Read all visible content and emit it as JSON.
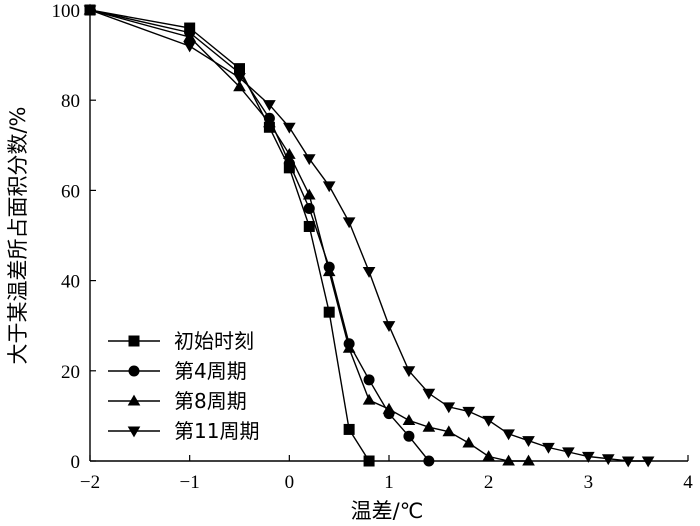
{
  "chart_data": {
    "type": "line",
    "xlabel": "温差/℃",
    "ylabel": "大于某温差所占面积分数/%",
    "xlim": [
      -2,
      4
    ],
    "ylim": [
      0,
      100
    ],
    "xticks": [
      -2,
      -1,
      0,
      1,
      2,
      3,
      4
    ],
    "xtick_labels": [
      "−2",
      "−1",
      "0",
      "1",
      "2",
      "3",
      "4"
    ],
    "yticks": [
      0,
      20,
      40,
      60,
      80,
      100
    ],
    "ytick_labels": [
      "0",
      "20",
      "40",
      "60",
      "80",
      "100"
    ],
    "grid": false,
    "legend_position": "lower-left",
    "series": [
      {
        "name": "初始时刻",
        "marker": "square",
        "x": [
          -2,
          -1,
          -0.5,
          -0.2,
          0,
          0.2,
          0.4,
          0.6,
          0.8
        ],
        "y": [
          100,
          96,
          87,
          74,
          65,
          52,
          33,
          7,
          0
        ]
      },
      {
        "name": "第4周期",
        "marker": "circle",
        "x": [
          -2,
          -1,
          -0.5,
          -0.2,
          0,
          0.2,
          0.4,
          0.6,
          0.8,
          1.0,
          1.2,
          1.4
        ],
        "y": [
          100,
          95,
          86,
          76,
          66,
          56,
          43,
          26,
          18,
          10.5,
          5.5,
          0
        ]
      },
      {
        "name": "第8周期",
        "marker": "triangle-up",
        "x": [
          -2,
          -1,
          -0.5,
          -0.2,
          0,
          0.2,
          0.4,
          0.6,
          0.8,
          1.0,
          1.2,
          1.4,
          1.6,
          1.8,
          2.0,
          2.2,
          2.4
        ],
        "y": [
          100,
          94,
          83,
          75,
          68,
          59,
          42,
          25,
          13.5,
          11.5,
          9,
          7.5,
          6.5,
          4,
          1,
          0,
          0
        ]
      },
      {
        "name": "第11周期",
        "marker": "triangle-down",
        "x": [
          -2,
          -1,
          -0.5,
          -0.2,
          0,
          0.2,
          0.4,
          0.6,
          0.8,
          1.0,
          1.2,
          1.4,
          1.6,
          1.8,
          2.0,
          2.2,
          2.4,
          2.6,
          2.8,
          3.0,
          3.2,
          3.4,
          3.6
        ],
        "y": [
          100,
          92,
          85,
          79,
          74,
          67,
          61,
          53,
          42,
          30,
          20,
          15,
          12,
          11,
          9,
          6,
          4.5,
          3,
          2,
          1,
          0.5,
          0,
          0
        ]
      }
    ]
  }
}
